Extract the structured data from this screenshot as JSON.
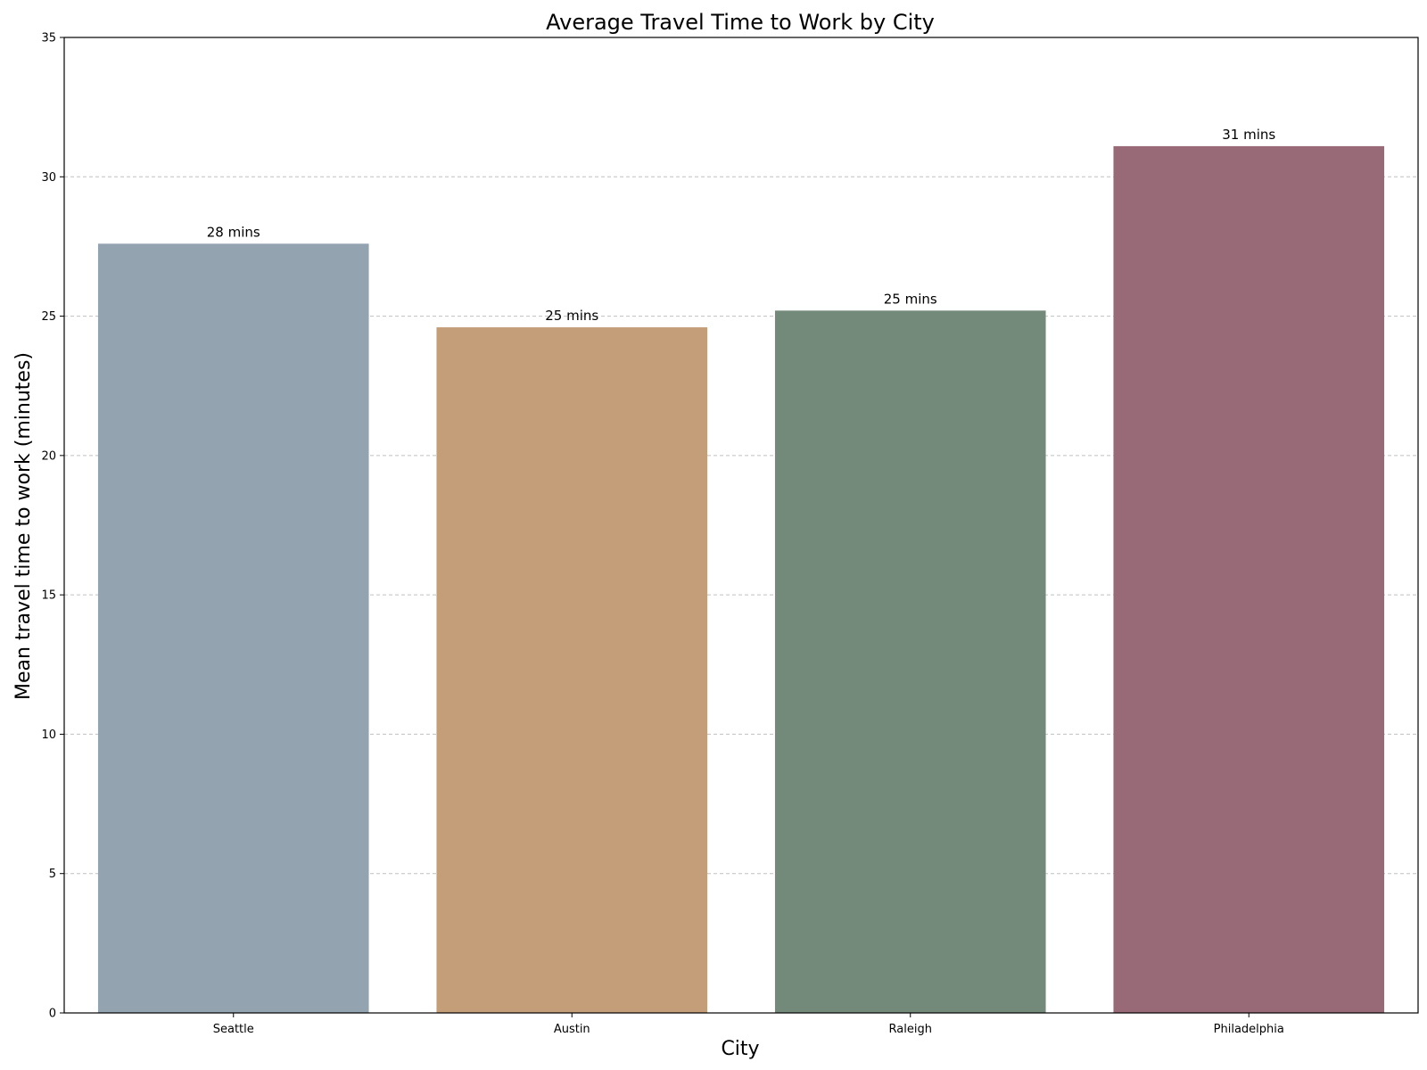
{
  "chart_data": {
    "type": "bar",
    "title": "Average Travel Time to Work by City",
    "xlabel": "City",
    "ylabel": "Mean travel time to work (minutes)",
    "categories": [
      "Seattle",
      "Austin",
      "Raleigh",
      "Philadelphia"
    ],
    "values": [
      27.6,
      24.6,
      25.2,
      31.1
    ],
    "data_labels": [
      "28 mins",
      "25 mins",
      "25 mins",
      "31 mins"
    ],
    "colors": [
      "#93a3b0",
      "#c49d79",
      "#738a7b",
      "#986a78"
    ],
    "ylim": [
      0,
      35
    ],
    "yticks": [
      0,
      5,
      10,
      15,
      20,
      25,
      30,
      35
    ],
    "grid": "y-dashed",
    "legend": "none"
  }
}
